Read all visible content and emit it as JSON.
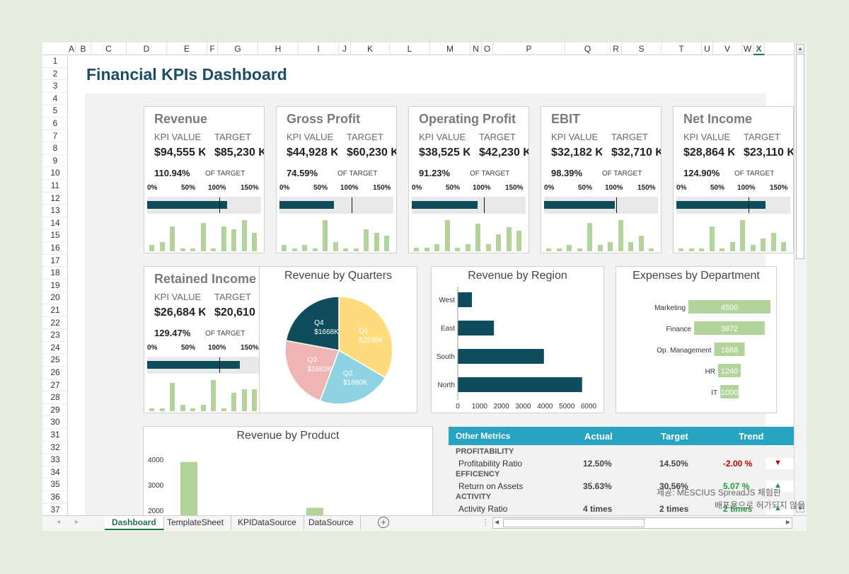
{
  "title": "Financial KPIs Dashboard",
  "columns": [
    "A",
    "B",
    "C",
    "D",
    "E",
    "F",
    "G",
    "H",
    "I",
    "J",
    "K",
    "L",
    "M",
    "N",
    "O",
    "P",
    "Q",
    "R",
    "S",
    "T",
    "U",
    "V",
    "W",
    "X"
  ],
  "rows": [
    "1",
    "2",
    "3",
    "4",
    "5",
    "6",
    "7",
    "8",
    "9",
    "10",
    "11",
    "12",
    "13",
    "14",
    "15",
    "16",
    "17",
    "18",
    "19",
    "20",
    "21",
    "22",
    "23",
    "24",
    "25",
    "26",
    "27",
    "28",
    "29",
    "30",
    "31",
    "32",
    "33",
    "34",
    "35",
    "36",
    "37"
  ],
  "kpi_labels": {
    "kpi_value": "KPI VALUE",
    "target": "TARGET",
    "of_target": "OF TARGET",
    "scale": [
      "0%",
      "50%",
      "100%",
      "150%"
    ]
  },
  "kpis": [
    {
      "name": "Revenue",
      "value": "$94,555 K",
      "target": "$85,230 K",
      "percent": "110.94%",
      "fill": 110.94,
      "spark": [
        2,
        3,
        8,
        1,
        1,
        9,
        1,
        8,
        7,
        10,
        6
      ]
    },
    {
      "name": "Gross Profit",
      "value": "$44,928 K",
      "target": "$60,230 K",
      "percent": "74.59%",
      "fill": 74.59,
      "spark": [
        2,
        1,
        2,
        1,
        10,
        3,
        1,
        1,
        7,
        6,
        5
      ]
    },
    {
      "name": "Operating Profit",
      "value": "$38,525 K",
      "target": "$42,230 K",
      "percent": "91.23%",
      "fill": 91.23,
      "spark": [
        1,
        1,
        2,
        9,
        1,
        2,
        8,
        2,
        5,
        7,
        6
      ]
    },
    {
      "name": "EBIT",
      "value": "$32,182 K",
      "target": "$32,710 K",
      "percent": "98.39%",
      "fill": 98.39,
      "spark": [
        1,
        1,
        2,
        1,
        9,
        2,
        3,
        10,
        3,
        5,
        1
      ]
    },
    {
      "name": "Net Income",
      "value": "$28,864 K",
      "target": "$23,110 K",
      "percent": "124.90%",
      "fill": 124.9,
      "spark": [
        1,
        1,
        1,
        8,
        1,
        3,
        10,
        2,
        4,
        6,
        3
      ]
    },
    {
      "name": "Retained Income",
      "value": "$26,684 K",
      "target": "$20,610 K",
      "percent": "129.47%",
      "fill": 129.47,
      "spark": [
        1,
        1,
        9,
        2,
        1,
        2,
        10,
        1,
        6,
        7,
        7
      ]
    }
  ],
  "chart_data": [
    {
      "type": "pie",
      "title": "Revenue by Quarters",
      "slices": [
        {
          "label": "Q1",
          "value": 2530,
          "text": "$2530K",
          "color": "#fcdc7c"
        },
        {
          "label": "Q2",
          "value": 1680,
          "text": "$1680K",
          "color": "#8fd3e3"
        },
        {
          "label": "Q3",
          "value": 1682,
          "text": "$1682K",
          "color": "#efb4b4"
        },
        {
          "label": "Q4",
          "value": 1668,
          "text": "$1668K",
          "color": "#0f4c5c"
        }
      ]
    },
    {
      "type": "bar",
      "orientation": "horizontal",
      "title": "Revenue by Region",
      "categories": [
        "West",
        "East",
        "South",
        "North"
      ],
      "values": [
        650,
        1660,
        3950,
        5700
      ],
      "xlim": [
        0,
        6000
      ],
      "ticks": [
        "0",
        "1000",
        "2000",
        "3000",
        "4000",
        "5000",
        "6000"
      ],
      "color": "#0f4c5c"
    },
    {
      "type": "bar",
      "orientation": "funnel",
      "title": "Expenses by Department",
      "categories": [
        "Marketing",
        "Finance",
        "Op. Management",
        "HR",
        "IT"
      ],
      "values": [
        4500,
        3872,
        1668,
        1240,
        1000
      ],
      "labels": [
        "4500",
        "3872",
        "1668",
        "1240",
        "1000"
      ],
      "color": "#b2d49a"
    },
    {
      "type": "bar",
      "title": "Revenue by Product",
      "ylim": [
        2000,
        4000
      ],
      "ticks": [
        "4000",
        "3000",
        "2000"
      ],
      "values": [
        3900,
        2100
      ],
      "color": "#b2d49a"
    }
  ],
  "other_metrics": {
    "headers": [
      "Other Metrics",
      "Actual",
      "Target",
      "Trend"
    ],
    "groups": [
      {
        "name": "PROFITABILITY",
        "rows": [
          {
            "label": "Profitability Ratio",
            "actual": "12.50%",
            "target": "14.50%",
            "trend": "-2.00 %",
            "arrow": "▼",
            "dir": "down"
          }
        ]
      },
      {
        "name": "EFFICENCY",
        "rows": [
          {
            "label": "Return on Assets",
            "actual": "35.63%",
            "target": "30.56%",
            "trend": "5.07 %",
            "arrow": "▲",
            "dir": "up"
          }
        ]
      },
      {
        "name": "ACTIVITY",
        "rows": [
          {
            "label": "Activity Ratio",
            "actual": "4 times",
            "target": "2 times",
            "trend": "2 times",
            "arrow": "▲",
            "dir": "up"
          }
        ]
      }
    ]
  },
  "tabs": [
    "Dashboard",
    "TemplateSheet",
    "KPIDataSource",
    "DataSource"
  ],
  "watermark": [
    "제공: MESCIUS SpreadJS 체험판",
    "배포용으로 허가되지 않음"
  ],
  "colors": {
    "accent": "#217346",
    "navy": "#0f4c5c",
    "green": "#b2d49a",
    "header_blue": "#26a4c0"
  }
}
